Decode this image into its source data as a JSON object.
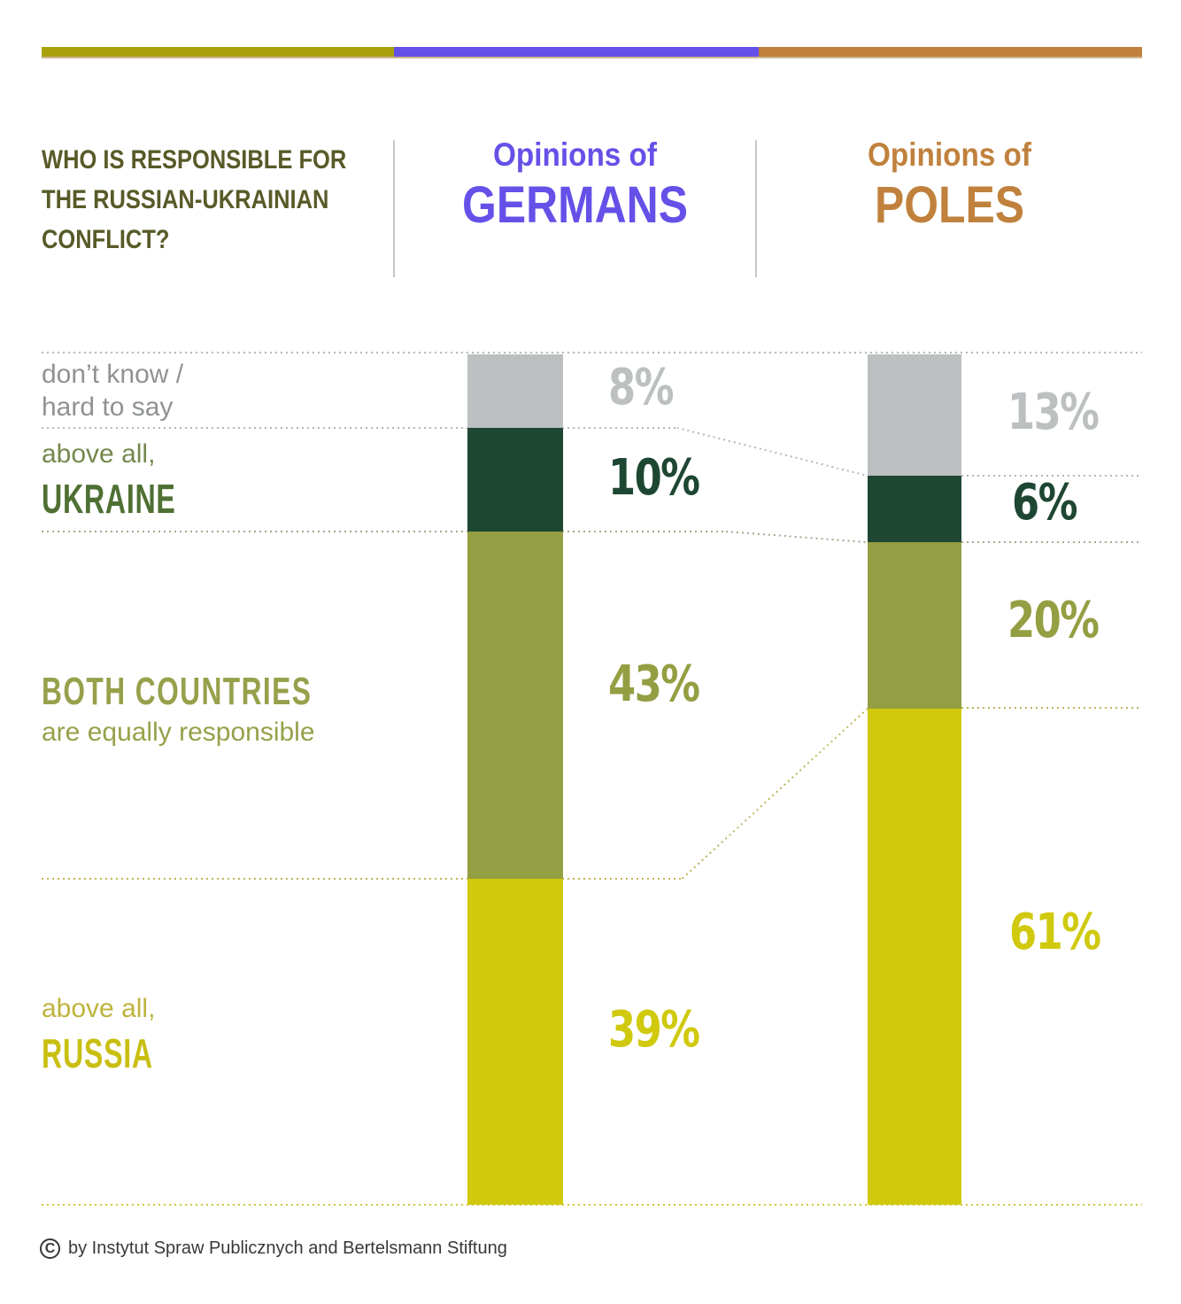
{
  "header": {
    "title_line1": "WHO IS RESPONSIBLE FOR",
    "title_line2": "THE RUSSIAN-UKRAINIAN",
    "title_line3": "CONFLICT?",
    "german_prefix": "Opinions of",
    "german_name": "GERMANS",
    "polish_prefix": "Opinions of",
    "polish_name": "POLES"
  },
  "rows": [
    {
      "label_line1": "don’t know /",
      "label_line2": "hard to say",
      "german_value": "8%",
      "polish_value": "13%"
    },
    {
      "label_line1": "above all,",
      "label_line2": "UKRAINE",
      "german_value": "10%",
      "polish_value": "6%"
    },
    {
      "label_line1": "BOTH COUNTRIES",
      "label_line2": "are equally responsible",
      "german_value": "43%",
      "polish_value": "20%"
    },
    {
      "label_line1": "above all,",
      "label_line2": "RUSSIA",
      "german_value": "39%",
      "polish_value": "61%"
    }
  ],
  "chart_data": {
    "type": "bar",
    "stacked": true,
    "orientation": "vertical",
    "title": "WHO IS RESPONSIBLE FOR THE RUSSIAN-UKRAINIAN CONFLICT?",
    "categories": [
      "don't know / hard to say",
      "above all, UKRAINE",
      "BOTH COUNTRIES are equally responsible",
      "above all, RUSSIA"
    ],
    "series": [
      {
        "name": "Opinions of GERMANS",
        "values": [
          8,
          10,
          43,
          39
        ]
      },
      {
        "name": "Opinions of POLES",
        "values": [
          13,
          6,
          20,
          61
        ]
      }
    ],
    "unit": "%",
    "segment_colors": [
      "#bcc0c1",
      "#1e4733",
      "#949e42",
      "#d0c90e"
    ],
    "legend_position": "left",
    "grid": false
  },
  "palette": {
    "accent_olive": "#a9a10b",
    "accent_purple": "#6550e8",
    "accent_brown": "#c0813d",
    "segment_gray": "#bcc0c1",
    "segment_dark_green": "#1e4733",
    "segment_olive": "#949e42",
    "segment_yellow": "#d0c90e",
    "title_color": "#585a28"
  },
  "footer": {
    "symbol": "C",
    "text": "by Instytut Spraw Publicznych and Bertelsmann Stiftung"
  }
}
